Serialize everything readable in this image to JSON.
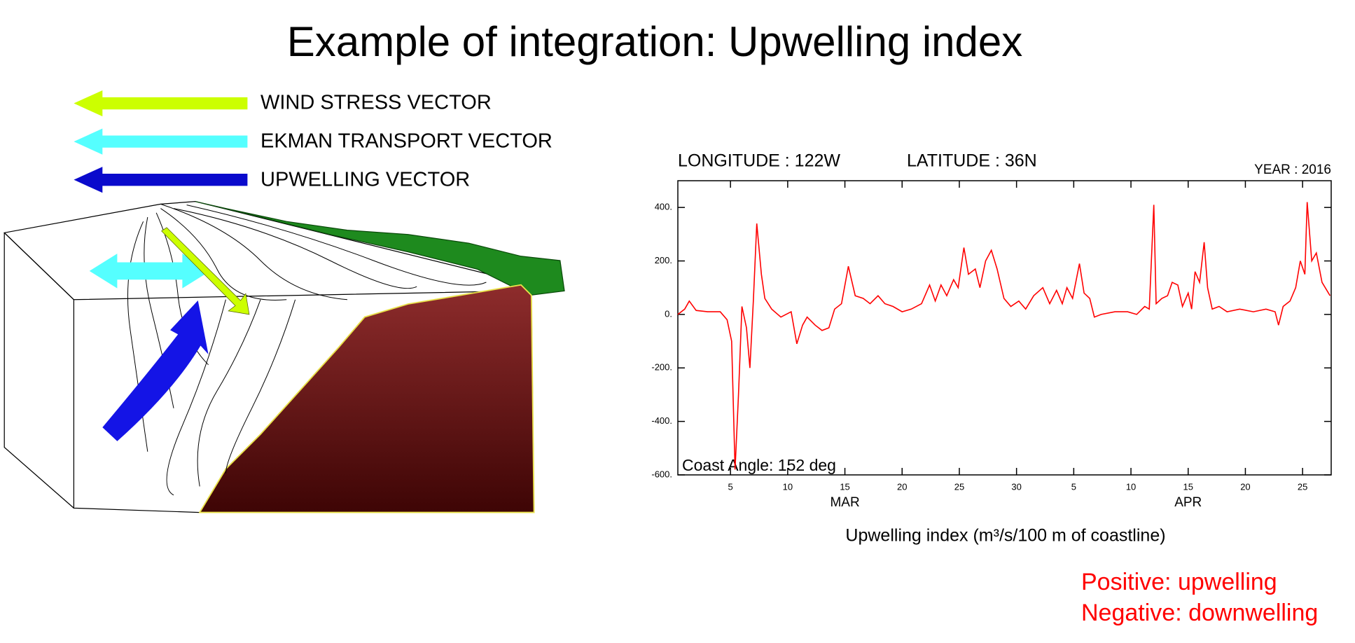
{
  "title": "Example of integration: Upwelling index",
  "legend": [
    "WIND STRESS VECTOR",
    "EKMAN TRANSPORT VECTOR",
    "UPWELLING VECTOR"
  ],
  "notes": [
    "Positive: upwelling",
    "Negative: downwelling"
  ],
  "chart_data": {
    "type": "line",
    "annotations": [
      "LONGITUDE : 122W",
      "LATITUDE : 36N",
      "YEAR : 2016",
      "Coast Angle: 152 deg"
    ],
    "xlabel": "Upwelling index (m³/s/100 m of coastline)",
    "month_labels": [
      "MAR",
      "APR"
    ],
    "color": "#ff0000",
    "x": [
      0.4,
      1.0,
      1.4,
      2.0,
      3.0,
      4.1,
      4.7,
      5.1,
      5.4,
      5.7,
      6.0,
      6.4,
      6.7,
      7.0,
      7.3,
      7.7,
      8.0,
      8.6,
      9.4,
      10.3,
      10.8,
      11.3,
      11.7,
      12.4,
      13.0,
      13.6,
      14.1,
      14.7,
      15.3,
      15.9,
      16.6,
      17.2,
      17.9,
      18.5,
      19.2,
      20.0,
      20.8,
      21.7,
      22.4,
      22.9,
      23.4,
      23.9,
      24.5,
      24.9,
      25.4,
      25.8,
      26.4,
      26.8,
      27.3,
      27.8,
      28.3,
      28.9,
      29.5,
      30.2,
      30.8,
      31.5,
      32.3,
      32.9,
      33.5,
      34.0,
      34.4,
      34.9,
      35.5,
      35.9,
      36.4,
      36.8,
      37.4,
      38.6,
      39.7,
      40.5,
      41.2,
      41.6,
      42.0,
      42.2,
      42.7,
      43.2,
      43.6,
      44.1,
      44.5,
      45.0,
      45.3,
      45.6,
      46.0,
      46.4,
      46.7,
      47.1,
      47.7,
      48.4,
      49.5,
      50.7,
      51.8,
      52.6,
      52.9,
      53.3,
      53.9,
      54.4,
      54.8,
      55.2,
      55.4,
      55.8,
      56.2,
      56.7,
      57.4
    ],
    "values": [
      0,
      20,
      50,
      15,
      10,
      10,
      -20,
      -100,
      -580,
      -300,
      30,
      -50,
      -200,
      50,
      340,
      150,
      60,
      20,
      -10,
      10,
      -110,
      -40,
      -10,
      -40,
      -60,
      -50,
      20,
      40,
      180,
      70,
      60,
      40,
      70,
      40,
      30,
      10,
      20,
      40,
      110,
      50,
      110,
      70,
      130,
      100,
      250,
      150,
      170,
      100,
      200,
      240,
      170,
      60,
      30,
      50,
      20,
      70,
      100,
      40,
      90,
      40,
      100,
      60,
      190,
      80,
      60,
      -10,
      0,
      10,
      10,
      0,
      30,
      20,
      410,
      40,
      60,
      70,
      120,
      110,
      30,
      80,
      20,
      160,
      120,
      270,
      100,
      20,
      30,
      10,
      20,
      10,
      20,
      10,
      -40,
      30,
      50,
      100,
      200,
      150,
      420,
      200,
      230,
      120,
      70
    ],
    "xlim": [
      0.4,
      57.5
    ],
    "xticks": [
      5,
      10,
      15,
      20,
      25,
      30,
      {
        "value": 35,
        "label": "5"
      },
      {
        "value": 40,
        "label": "10"
      },
      {
        "value": 45,
        "label": "15"
      },
      {
        "value": 50,
        "label": "20"
      },
      {
        "value": 55,
        "label": "25"
      }
    ],
    "ylim": [
      -600,
      500
    ],
    "yticks": [
      {
        "value": 400,
        "label": "400."
      },
      {
        "value": 200,
        "label": "200."
      },
      {
        "value": 0,
        "label": "0."
      },
      {
        "value": -200,
        "label": "-200."
      },
      {
        "value": -400,
        "label": "-400."
      },
      {
        "value": -600,
        "label": "-600."
      }
    ]
  }
}
